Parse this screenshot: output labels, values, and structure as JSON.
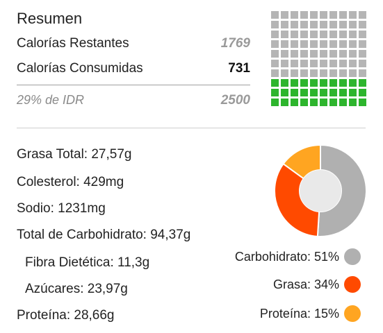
{
  "summary": {
    "title": "Resumen",
    "remaining_label": "Calorías Restantes",
    "remaining_value": "1769",
    "consumed_label": "Calorías Consumidas",
    "consumed_value": "731",
    "idr_label": "29% de IDR",
    "idr_value": "2500",
    "grid": {
      "total_cells": 100,
      "filled_cells": 30,
      "filled_color": "#2db52d",
      "empty_color": "#b5b5b5"
    }
  },
  "nutrients": [
    {
      "label": "Grasa Total: 27,57g",
      "indent": false
    },
    {
      "label": "Colesterol: 429mg",
      "indent": false
    },
    {
      "label": "Sodio: 1231mg",
      "indent": false
    },
    {
      "label": "Total de Carbohidrato: 94,37g",
      "indent": false
    },
    {
      "label": "Fibra Dietética: 11,3g",
      "indent": true
    },
    {
      "label": "Azúcares: 23,97g",
      "indent": true
    },
    {
      "label": "Proteína: 28,66g",
      "indent": false
    }
  ],
  "chart_data": {
    "type": "pie",
    "categories": [
      "Carbohidrato",
      "Grasa",
      "Proteína"
    ],
    "values": [
      51,
      34,
      15
    ],
    "colors": [
      "#b0b0b0",
      "#ff4a00",
      "#ffa521"
    ],
    "legend_placement": "bottom-right"
  },
  "legend": [
    {
      "label": "Carbohidrato: 51%",
      "color": "#b0b0b0"
    },
    {
      "label": "Grasa: 34%",
      "color": "#ff4a00"
    },
    {
      "label": "Proteína: 15%",
      "color": "#ffa521"
    }
  ]
}
